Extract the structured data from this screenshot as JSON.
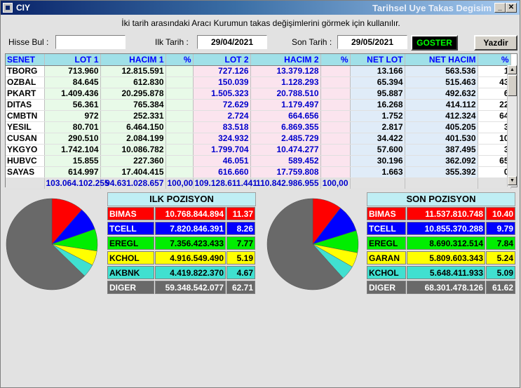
{
  "window": {
    "title": "CIY",
    "subtitle": "Tarihsel Uye Takas Degisim"
  },
  "description": "İki tarih arasındaki  Aracı Kurumun takas değişimlerini görmek için kullanılır.",
  "form": {
    "search_label": "Hisse Bul :",
    "search_value": "",
    "start_label": "Ilk Tarih :",
    "start_date": "29/04/2021",
    "end_label": "Son Tarih :",
    "end_date": "29/05/2021",
    "goster_label": "GOSTER",
    "yazdir_label": "Yazdir"
  },
  "grid": {
    "headers": [
      "SENET",
      "LOT 1",
      "HACIM 1",
      "%",
      "LOT 2",
      "HACIM 2",
      "%",
      "NET LOT",
      "NET HACIM",
      "%"
    ],
    "rows": [
      [
        "TBORG",
        "713.960",
        "12.815.591",
        "",
        "727.126",
        "13.379.128",
        "",
        "13.166",
        "563.536",
        "1"
      ],
      [
        "OZBAL",
        "84.645",
        "612.830",
        "",
        "150.039",
        "1.128.293",
        "",
        "65.394",
        "515.463",
        "43"
      ],
      [
        "PKART",
        "1.409.436",
        "20.295.878",
        "",
        "1.505.323",
        "20.788.510",
        "",
        "95.887",
        "492.632",
        "6"
      ],
      [
        "DITAS",
        "56.361",
        "765.384",
        "",
        "72.629",
        "1.179.497",
        "",
        "16.268",
        "414.112",
        "22"
      ],
      [
        "CMBTN",
        "972",
        "252.331",
        "",
        "2.724",
        "664.656",
        "",
        "1.752",
        "412.324",
        "64"
      ],
      [
        "YESIL",
        "80.701",
        "6.464.150",
        "",
        "83.518",
        "6.869.355",
        "",
        "2.817",
        "405.205",
        "3"
      ],
      [
        "CUSAN",
        "290.510",
        "2.084.199",
        "",
        "324.932",
        "2.485.729",
        "",
        "34.422",
        "401.530",
        "10"
      ],
      [
        "YKGYO",
        "1.742.104",
        "10.086.782",
        "",
        "1.799.704",
        "10.474.277",
        "",
        "57.600",
        "387.495",
        "3"
      ],
      [
        "HUBVC",
        "15.855",
        "227.360",
        "",
        "46.051",
        "589.452",
        "",
        "30.196",
        "362.092",
        "65"
      ],
      [
        "SAYAS",
        "614.997",
        "17.404.415",
        "",
        "616.660",
        "17.759.808",
        "",
        "1.663",
        "355.392",
        "0"
      ]
    ],
    "totals": [
      "",
      "103.064.102.255",
      "94.631.028.657",
      "100,00",
      "109.128.611.441",
      "110.842.986.955",
      "100,00",
      "",
      "",
      ""
    ]
  },
  "ilk": {
    "title": "ILK POZISYON",
    "rows": [
      {
        "name": "BIMAS",
        "value": "10.768.844.894",
        "pct": "11.37",
        "bg": "#ff0000",
        "fg": "#ffffff"
      },
      {
        "name": "TCELL",
        "value": "7.820.846.391",
        "pct": "8.26",
        "bg": "#0000ff",
        "fg": "#ffffff"
      },
      {
        "name": "EREGL",
        "value": "7.356.423.433",
        "pct": "7.77",
        "bg": "#00ee00",
        "fg": "#000000"
      },
      {
        "name": "KCHOL",
        "value": "4.916.549.490",
        "pct": "5.19",
        "bg": "#ffff00",
        "fg": "#000000"
      },
      {
        "name": "AKBNK",
        "value": "4.419.822.370",
        "pct": "4.67",
        "bg": "#40e0d0",
        "fg": "#000000"
      },
      {
        "name": "DIGER",
        "value": "59.348.542.077",
        "pct": "62.71",
        "bg": "#696969",
        "fg": "#ffffff"
      }
    ]
  },
  "son": {
    "title": "SON POZISYON",
    "rows": [
      {
        "name": "BIMAS",
        "value": "11.537.810.748",
        "pct": "10.40",
        "bg": "#ff0000",
        "fg": "#ffffff"
      },
      {
        "name": "TCELL",
        "value": "10.855.370.288",
        "pct": "9.79",
        "bg": "#0000ff",
        "fg": "#ffffff"
      },
      {
        "name": "EREGL",
        "value": "8.690.312.514",
        "pct": "7.84",
        "bg": "#00ee00",
        "fg": "#000000"
      },
      {
        "name": "GARAN",
        "value": "5.809.603.343",
        "pct": "5.24",
        "bg": "#ffff00",
        "fg": "#000000"
      },
      {
        "name": "KCHOL",
        "value": "5.648.411.933",
        "pct": "5.09",
        "bg": "#40e0d0",
        "fg": "#000000"
      },
      {
        "name": "DIGER",
        "value": "68.301.478.126",
        "pct": "61.62",
        "bg": "#696969",
        "fg": "#ffffff"
      }
    ]
  },
  "chart_data": [
    {
      "type": "pie",
      "categories": [
        "BIMAS",
        "TCELL",
        "EREGL",
        "KCHOL",
        "AKBNK",
        "DIGER"
      ],
      "values": [
        11.37,
        8.26,
        7.77,
        5.19,
        4.67,
        62.71
      ],
      "colors": [
        "#ff0000",
        "#0000ff",
        "#00ee00",
        "#ffff00",
        "#40e0d0",
        "#696969"
      ]
    },
    {
      "type": "pie",
      "categories": [
        "BIMAS",
        "TCELL",
        "EREGL",
        "GARAN",
        "KCHOL",
        "DIGER"
      ],
      "values": [
        10.4,
        9.79,
        7.84,
        5.24,
        5.09,
        61.62
      ],
      "colors": [
        "#ff0000",
        "#0000ff",
        "#00ee00",
        "#ffff00",
        "#40e0d0",
        "#696969"
      ]
    }
  ]
}
